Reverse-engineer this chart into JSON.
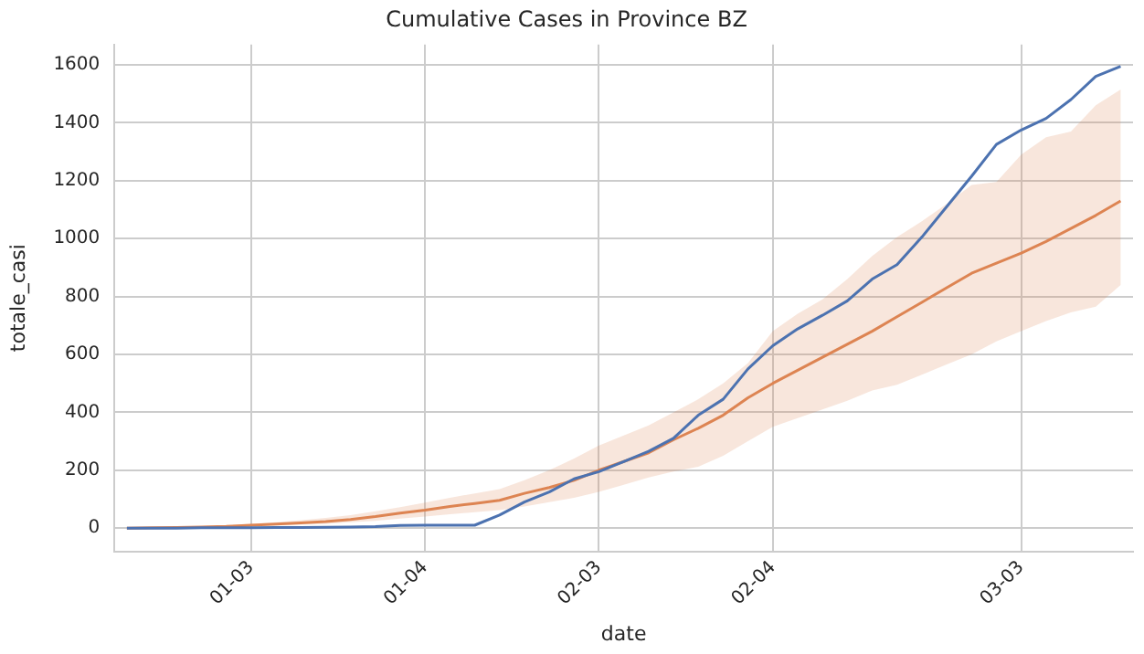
{
  "chart_data": {
    "type": "line",
    "title": "Cumulative Cases in Province BZ",
    "xlabel": "date",
    "ylabel": "totale_casi",
    "categories": [
      null,
      null,
      null,
      null,
      null,
      "01-03",
      null,
      null,
      null,
      null,
      null,
      null,
      "01-04",
      null,
      null,
      null,
      null,
      null,
      null,
      "02-03",
      null,
      null,
      null,
      null,
      null,
      null,
      "02-04",
      null,
      null,
      null,
      null,
      null,
      null,
      null,
      null,
      null,
      "03-03",
      null,
      null,
      null,
      null
    ],
    "series": [
      {
        "color": "#4c72b0",
        "values": [
          0,
          0,
          0,
          1,
          1,
          1,
          2,
          2,
          3,
          4,
          5,
          9,
          10,
          10,
          10,
          45,
          90,
          125,
          170,
          195,
          230,
          265,
          310,
          390,
          445,
          550,
          630,
          688,
          735,
          785,
          860,
          910,
          1005,
          1110,
          1215,
          1325,
          1375,
          1415,
          1480,
          1560,
          1595
        ]
      },
      {
        "color": "#dd8452",
        "values": [
          0,
          1,
          2,
          4,
          6,
          10,
          14,
          18,
          23,
          30,
          40,
          52,
          62,
          75,
          85,
          96,
          120,
          140,
          165,
          200,
          230,
          260,
          305,
          345,
          390,
          450,
          500,
          545,
          590,
          635,
          680,
          730,
          780,
          830,
          880,
          915,
          950,
          990,
          1035,
          1080,
          1130
        ],
        "lower": [
          0,
          0,
          1,
          2,
          3,
          6,
          9,
          12,
          15,
          20,
          25,
          33,
          40,
          48,
          55,
          62,
          75,
          90,
          105,
          125,
          150,
          175,
          195,
          212,
          250,
          300,
          350,
          380,
          410,
          440,
          475,
          495,
          530,
          565,
          600,
          645,
          680,
          715,
          745,
          765,
          840
        ],
        "upper": [
          0,
          2,
          4,
          7,
          10,
          15,
          20,
          27,
          35,
          45,
          58,
          72,
          88,
          105,
          120,
          135,
          165,
          200,
          240,
          285,
          320,
          355,
          400,
          445,
          500,
          570,
          680,
          740,
          790,
          860,
          940,
          1005,
          1060,
          1120,
          1185,
          1195,
          1290,
          1350,
          1370,
          1460,
          1515
        ]
      }
    ],
    "ylim": [
      -80,
      1670
    ],
    "yticks": [
      0,
      200,
      400,
      600,
      800,
      1000,
      1200,
      1400,
      1600
    ],
    "grid": true,
    "legend": false,
    "marker": "none",
    "line_style": "solid"
  }
}
